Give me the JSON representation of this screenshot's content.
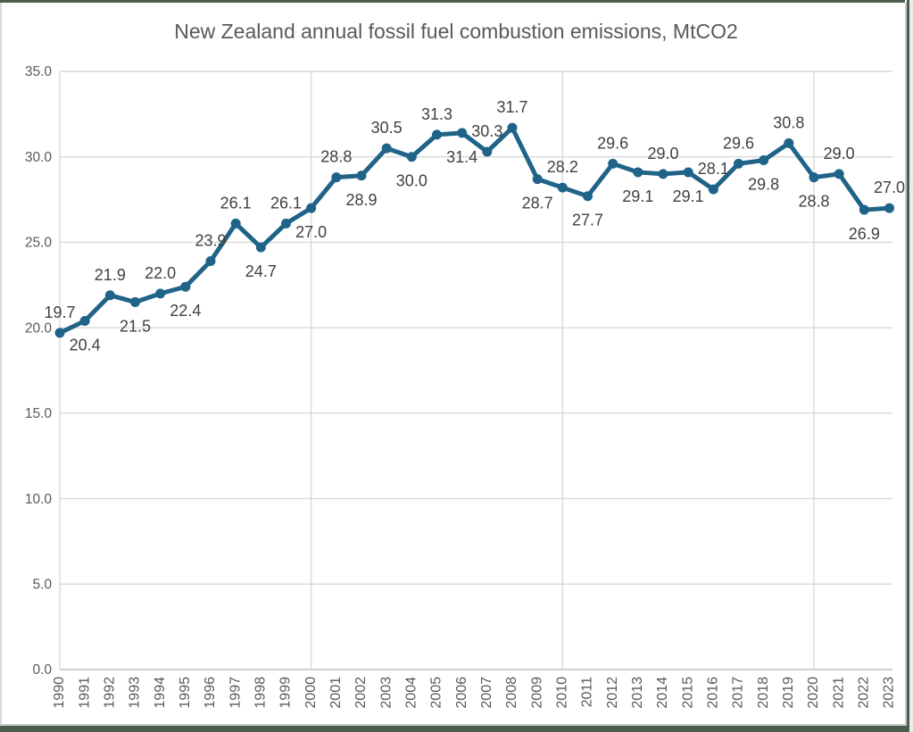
{
  "window": {
    "frame_color": "#4b5d4f",
    "chart_border_color": "#cccccc",
    "background": "#ffffff"
  },
  "chart_data": {
    "type": "line",
    "title": "New Zealand annual fossil fuel combustion emissions, MtCO2",
    "xlabel": "",
    "ylabel": "",
    "x": [
      1990,
      1991,
      1992,
      1993,
      1994,
      1995,
      1996,
      1997,
      1998,
      1999,
      2000,
      2001,
      2002,
      2003,
      2004,
      2005,
      2006,
      2007,
      2008,
      2009,
      2010,
      2011,
      2012,
      2013,
      2014,
      2015,
      2016,
      2017,
      2018,
      2019,
      2020,
      2021,
      2022,
      2023
    ],
    "values": [
      19.7,
      20.4,
      21.9,
      21.5,
      22.0,
      22.4,
      23.9,
      26.1,
      24.7,
      26.1,
      27.0,
      28.8,
      28.9,
      30.5,
      30.0,
      31.3,
      31.4,
      30.3,
      31.7,
      28.7,
      28.2,
      27.7,
      29.6,
      29.1,
      29.0,
      29.1,
      28.1,
      29.6,
      29.8,
      30.8,
      28.8,
      29.0,
      26.9,
      27.0
    ],
    "data_labels_shown": true,
    "data_label_positions": [
      "above",
      "below",
      "above",
      "below",
      "above",
      "below",
      "above",
      "above",
      "below",
      "above",
      "below",
      "above",
      "below",
      "above",
      "below",
      "above",
      "below",
      "above",
      "above",
      "below",
      "above",
      "below",
      "above",
      "below",
      "above",
      "below",
      "above",
      "above",
      "below",
      "above",
      "below",
      "above",
      "below",
      "above"
    ],
    "ylim": [
      0,
      35
    ],
    "ytick_interval": 5,
    "ytick_labels": [
      "0.0",
      "5.0",
      "10.0",
      "15.0",
      "20.0",
      "25.0",
      "30.0",
      "35.0"
    ],
    "xtick_labels_rotated_90": true,
    "vertical_gridline_years": [
      2000,
      2010,
      2020
    ],
    "grid": "horizontal every 5 units; vertical at 2000/2010/2020; left axis line",
    "legend": "none",
    "line_color": "#1f6389",
    "marker_color": "#1f6389",
    "gridline_color": "#d9d9d9",
    "axis_line_color": "#bfbfbf",
    "title_color": "#595959",
    "tick_label_color": "#595959",
    "data_label_color": "#404040"
  }
}
